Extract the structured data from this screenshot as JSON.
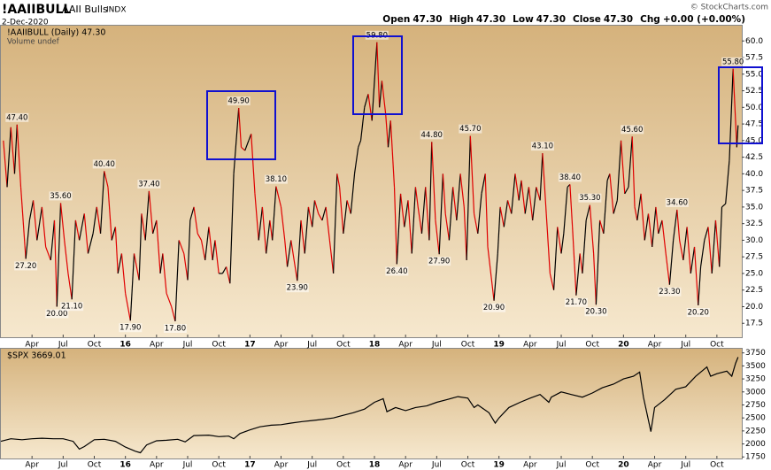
{
  "header": {
    "symbol": "!AAIIBULL",
    "name": "AAII Bulls",
    "exchange": "INDX",
    "date": "2-Dec-2020",
    "copyright": "© StockCharts.com",
    "quote": [
      {
        "label": "Open",
        "value": "47.30"
      },
      {
        "label": "High",
        "value": "47.30"
      },
      {
        "label": "Low",
        "value": "47.30"
      },
      {
        "label": "Close",
        "value": "47.30"
      },
      {
        "label": "Chg",
        "value": "+0.00 (+0.00%)"
      }
    ]
  },
  "chart_data": [
    {
      "type": "updown-line",
      "legend_note": "Volume undef",
      "xlim": [
        2015.0,
        2020.95
      ],
      "ylim": [
        15.4,
        62.3
      ],
      "xticks": [
        {
          "value": 2015.25,
          "label": "Apr"
        },
        {
          "value": 2015.5,
          "label": "Jul"
        },
        {
          "value": 2015.75,
          "label": "Oct"
        },
        {
          "value": 2016,
          "label": "16"
        },
        {
          "value": 2016.25,
          "label": "Apr"
        },
        {
          "value": 2016.5,
          "label": "Jul"
        },
        {
          "value": 2016.75,
          "label": "Oct"
        },
        {
          "value": 2017,
          "label": "17"
        },
        {
          "value": 2017.25,
          "label": "Apr"
        },
        {
          "value": 2017.5,
          "label": "Jul"
        },
        {
          "value": 2017.75,
          "label": "Oct"
        },
        {
          "value": 2018,
          "label": "18"
        },
        {
          "value": 2018.25,
          "label": "Apr"
        },
        {
          "value": 2018.5,
          "label": "Jul"
        },
        {
          "value": 2018.75,
          "label": "Oct"
        },
        {
          "value": 2019,
          "label": "19"
        },
        {
          "value": 2019.25,
          "label": "Apr"
        },
        {
          "value": 2019.5,
          "label": "Jul"
        },
        {
          "value": 2019.75,
          "label": "Oct"
        },
        {
          "value": 2020,
          "label": "20"
        },
        {
          "value": 2020.25,
          "label": "Apr"
        },
        {
          "value": 2020.5,
          "label": "Jul"
        },
        {
          "value": 2020.75,
          "label": "Oct"
        }
      ],
      "yticks": [
        17.5,
        {
          "value": 20,
          "label": "20.0"
        },
        22.5,
        {
          "value": 25,
          "label": "25.0"
        },
        27.5,
        {
          "value": 30,
          "label": "30.0"
        },
        32.5,
        {
          "value": 35,
          "label": "35.0"
        },
        37.5,
        {
          "value": 40,
          "label": "40.0"
        },
        42.5,
        {
          "value": 45,
          "label": "45.0"
        },
        47.5,
        {
          "value": 50,
          "label": "50.0"
        },
        52.5,
        {
          "value": 55,
          "label": "55.0"
        },
        57.5,
        {
          "value": 60,
          "label": "60.0"
        }
      ],
      "x": [
        2015.02,
        2015.05,
        2015.08,
        2015.11,
        2015.13,
        2015.16,
        2015.2,
        2015.23,
        2015.26,
        2015.29,
        2015.33,
        2015.36,
        2015.4,
        2015.43,
        2015.45,
        2015.48,
        2015.51,
        2015.54,
        2015.57,
        2015.6,
        2015.63,
        2015.67,
        2015.7,
        2015.74,
        2015.77,
        2015.8,
        2015.83,
        2015.86,
        2015.89,
        2015.92,
        2015.94,
        2015.97,
        2016.0,
        2016.04,
        2016.07,
        2016.11,
        2016.13,
        2016.16,
        2016.19,
        2016.22,
        2016.25,
        2016.28,
        2016.3,
        2016.33,
        2016.37,
        2016.4,
        2016.43,
        2016.47,
        2016.5,
        2016.52,
        2016.55,
        2016.58,
        2016.61,
        2016.64,
        2016.67,
        2016.7,
        2016.72,
        2016.75,
        2016.78,
        2016.81,
        2016.84,
        2016.87,
        2016.91,
        2016.93,
        2016.96,
        2016.99,
        2017.01,
        2017.04,
        2017.07,
        2017.1,
        2017.13,
        2017.16,
        2017.18,
        2017.21,
        2017.25,
        2017.28,
        2017.3,
        2017.33,
        2017.38,
        2017.41,
        2017.44,
        2017.47,
        2017.5,
        2017.52,
        2017.55,
        2017.58,
        2017.61,
        2017.64,
        2017.67,
        2017.7,
        2017.72,
        2017.75,
        2017.78,
        2017.81,
        2017.84,
        2017.87,
        2017.89,
        2017.92,
        2017.95,
        2017.98,
        2018.02,
        2018.04,
        2018.06,
        2018.09,
        2018.11,
        2018.13,
        2018.16,
        2018.18,
        2018.21,
        2018.24,
        2018.27,
        2018.3,
        2018.33,
        2018.35,
        2018.38,
        2018.41,
        2018.44,
        2018.46,
        2018.49,
        2018.52,
        2018.55,
        2018.57,
        2018.6,
        2018.63,
        2018.66,
        2018.69,
        2018.72,
        2018.74,
        2018.77,
        2018.8,
        2018.83,
        2018.86,
        2018.89,
        2018.91,
        2018.96,
        2018.99,
        2019.01,
        2019.04,
        2019.07,
        2019.1,
        2019.13,
        2019.16,
        2019.18,
        2019.21,
        2019.24,
        2019.27,
        2019.3,
        2019.33,
        2019.35,
        2019.38,
        2019.41,
        2019.44,
        2019.47,
        2019.5,
        2019.52,
        2019.55,
        2019.57,
        2019.59,
        2019.62,
        2019.65,
        2019.67,
        2019.7,
        2019.73,
        2019.76,
        2019.78,
        2019.81,
        2019.84,
        2019.87,
        2019.89,
        2019.92,
        2019.95,
        2019.98,
        2020.01,
        2020.04,
        2020.07,
        2020.09,
        2020.11,
        2020.14,
        2020.17,
        2020.2,
        2020.23,
        2020.26,
        2020.28,
        2020.31,
        2020.34,
        2020.37,
        2020.4,
        2020.43,
        2020.45,
        2020.48,
        2020.51,
        2020.54,
        2020.57,
        2020.6,
        2020.62,
        2020.65,
        2020.68,
        2020.71,
        2020.74,
        2020.77,
        2020.79,
        2020.82,
        2020.85,
        2020.88,
        2020.91,
        2020.92
      ],
      "series": [
        {
          "name": "!AAIIBULL (Daily) 47.30",
          "up_color": "#000000",
          "down_color": "#e00000",
          "values": [
            45,
            38,
            47,
            40,
            47.4,
            38,
            27.2,
            33,
            36,
            30,
            35,
            29,
            27,
            33,
            20,
            35.6,
            30,
            25,
            21.1,
            33,
            30,
            34,
            28,
            31,
            35,
            31,
            40.4,
            38,
            30,
            32,
            25,
            28,
            22,
            17.9,
            28,
            24,
            34,
            30,
            37.4,
            31,
            33,
            25,
            28,
            22,
            20,
            17.8,
            30,
            28,
            24,
            33,
            35,
            31,
            30,
            27,
            32,
            27,
            30,
            25,
            25,
            26,
            23.5,
            40,
            49.9,
            44,
            43.5,
            45,
            46,
            37,
            30,
            35,
            28,
            33,
            30,
            38.1,
            35,
            30,
            26,
            30,
            23.9,
            33,
            28,
            35,
            32,
            36,
            34,
            33,
            35,
            30,
            25,
            40,
            38,
            31,
            36,
            34,
            40,
            44,
            45,
            50,
            52,
            48,
            59.8,
            50,
            54,
            49,
            44,
            48,
            38,
            26.4,
            37,
            32,
            36,
            28,
            38,
            35,
            31,
            38,
            30,
            44.8,
            33,
            27.9,
            40,
            34,
            30,
            38,
            33,
            40,
            35,
            27,
            45.7,
            34,
            31,
            37,
            40,
            29,
            20.9,
            28,
            35,
            32,
            36,
            34,
            40,
            36,
            39,
            34,
            38,
            33,
            38,
            36,
            43.1,
            34,
            25,
            22.5,
            32,
            28,
            31,
            38,
            38.4,
            32,
            21.7,
            28,
            25,
            33,
            35.3,
            28,
            20.3,
            33,
            31,
            39,
            40,
            34,
            36,
            45,
            37,
            38,
            45.6,
            35,
            33,
            37,
            30,
            34,
            29,
            35,
            31,
            33,
            28,
            23.3,
            30,
            34.6,
            30,
            27,
            32,
            25,
            29,
            20.2,
            26,
            30,
            32,
            25,
            33,
            26,
            35,
            35.5,
            42,
            55.8,
            44,
            47.3
          ],
          "value_labels": [
            null,
            null,
            null,
            null,
            "47.40",
            null,
            "27.20",
            null,
            null,
            null,
            null,
            null,
            null,
            null,
            "20.00",
            "35.60",
            null,
            null,
            "21.10",
            null,
            null,
            null,
            null,
            null,
            null,
            null,
            "40.40",
            null,
            null,
            null,
            null,
            null,
            null,
            "17.90",
            null,
            null,
            null,
            null,
            "37.40",
            null,
            null,
            null,
            null,
            null,
            null,
            "17.80",
            null,
            null,
            null,
            null,
            null,
            null,
            null,
            null,
            null,
            null,
            null,
            null,
            null,
            null,
            null,
            null,
            "49.90",
            null,
            null,
            null,
            null,
            null,
            null,
            null,
            null,
            null,
            null,
            "38.10",
            null,
            null,
            null,
            null,
            "23.90",
            null,
            null,
            null,
            null,
            null,
            null,
            null,
            null,
            null,
            null,
            null,
            null,
            null,
            null,
            null,
            null,
            null,
            null,
            null,
            null,
            null,
            "59.80",
            null,
            null,
            null,
            null,
            null,
            null,
            "26.40",
            null,
            null,
            null,
            null,
            null,
            null,
            null,
            null,
            null,
            "44.80",
            null,
            "27.90",
            null,
            null,
            null,
            null,
            null,
            null,
            null,
            null,
            "45.70",
            null,
            null,
            null,
            null,
            null,
            "20.90",
            null,
            null,
            null,
            null,
            null,
            null,
            null,
            null,
            null,
            null,
            null,
            null,
            null,
            "43.10",
            null,
            null,
            null,
            null,
            null,
            null,
            null,
            "38.40",
            null,
            "21.70",
            null,
            null,
            null,
            "35.30",
            null,
            "20.30",
            null,
            null,
            null,
            null,
            null,
            null,
            null,
            null,
            null,
            "45.60",
            null,
            null,
            null,
            null,
            null,
            null,
            null,
            null,
            null,
            null,
            "23.30",
            null,
            "34.60",
            null,
            null,
            null,
            null,
            null,
            "20.20",
            null,
            null,
            null,
            null,
            null,
            null,
            null,
            null,
            null,
            "55.80",
            null,
            null
          ]
        }
      ]
    },
    {
      "type": "line",
      "xlim": [
        2015.0,
        2020.95
      ],
      "ylim": [
        1720,
        3830
      ],
      "xticks": [
        {
          "value": 2015.25,
          "label": "Apr"
        },
        {
          "value": 2015.5,
          "label": "Jul"
        },
        {
          "value": 2015.75,
          "label": "Oct"
        },
        {
          "value": 2016,
          "label": "16"
        },
        {
          "value": 2016.25,
          "label": "Apr"
        },
        {
          "value": 2016.5,
          "label": "Jul"
        },
        {
          "value": 2016.75,
          "label": "Oct"
        },
        {
          "value": 2017,
          "label": "17"
        },
        {
          "value": 2017.25,
          "label": "Apr"
        },
        {
          "value": 2017.5,
          "label": "Jul"
        },
        {
          "value": 2017.75,
          "label": "Oct"
        },
        {
          "value": 2018,
          "label": "18"
        },
        {
          "value": 2018.25,
          "label": "Apr"
        },
        {
          "value": 2018.5,
          "label": "Jul"
        },
        {
          "value": 2018.75,
          "label": "Oct"
        },
        {
          "value": 2019,
          "label": "19"
        },
        {
          "value": 2019.25,
          "label": "Apr"
        },
        {
          "value": 2019.5,
          "label": "Jul"
        },
        {
          "value": 2019.75,
          "label": "Oct"
        },
        {
          "value": 2020,
          "label": "20"
        },
        {
          "value": 2020.25,
          "label": "Apr"
        },
        {
          "value": 2020.5,
          "label": "Jul"
        },
        {
          "value": 2020.75,
          "label": "Oct"
        }
      ],
      "yticks": [
        1750,
        2000,
        2250,
        2500,
        2750,
        3000,
        3250,
        3500,
        3750
      ],
      "x": [
        2015.0,
        2015.08,
        2015.17,
        2015.25,
        2015.33,
        2015.42,
        2015.5,
        2015.58,
        2015.63,
        2015.67,
        2015.75,
        2015.83,
        2015.92,
        2016.0,
        2016.08,
        2016.12,
        2016.17,
        2016.25,
        2016.33,
        2016.42,
        2016.48,
        2016.55,
        2016.67,
        2016.75,
        2016.83,
        2016.87,
        2016.92,
        2017.0,
        2017.08,
        2017.17,
        2017.25,
        2017.33,
        2017.42,
        2017.5,
        2017.58,
        2017.67,
        2017.75,
        2017.83,
        2017.92,
        2018.0,
        2018.07,
        2018.1,
        2018.17,
        2018.25,
        2018.33,
        2018.42,
        2018.5,
        2018.58,
        2018.67,
        2018.75,
        2018.8,
        2018.83,
        2018.92,
        2018.97,
        2019.0,
        2019.08,
        2019.17,
        2019.25,
        2019.33,
        2019.4,
        2019.42,
        2019.5,
        2019.58,
        2019.67,
        2019.75,
        2019.83,
        2019.92,
        2020.0,
        2020.08,
        2020.13,
        2020.16,
        2020.22,
        2020.25,
        2020.33,
        2020.42,
        2020.5,
        2020.58,
        2020.67,
        2020.7,
        2020.75,
        2020.83,
        2020.87,
        2020.9,
        2020.92
      ],
      "series": [
        {
          "name": "$SPX 3669.01",
          "color": "#000000",
          "values": [
            2050,
            2100,
            2080,
            2100,
            2110,
            2100,
            2100,
            2050,
            1900,
            1950,
            2080,
            2090,
            2050,
            1940,
            1860,
            1830,
            1980,
            2060,
            2070,
            2090,
            2040,
            2160,
            2170,
            2140,
            2150,
            2100,
            2200,
            2270,
            2330,
            2360,
            2370,
            2400,
            2430,
            2450,
            2470,
            2500,
            2550,
            2600,
            2670,
            2800,
            2870,
            2620,
            2700,
            2640,
            2700,
            2730,
            2800,
            2850,
            2910,
            2880,
            2700,
            2750,
            2600,
            2400,
            2500,
            2700,
            2800,
            2880,
            2950,
            2800,
            2900,
            3000,
            2950,
            2900,
            2980,
            3080,
            3150,
            3250,
            3300,
            3380,
            2900,
            2237,
            2700,
            2850,
            3050,
            3100,
            3300,
            3480,
            3300,
            3350,
            3400,
            3300,
            3550,
            3669.01
          ]
        }
      ]
    }
  ]
}
